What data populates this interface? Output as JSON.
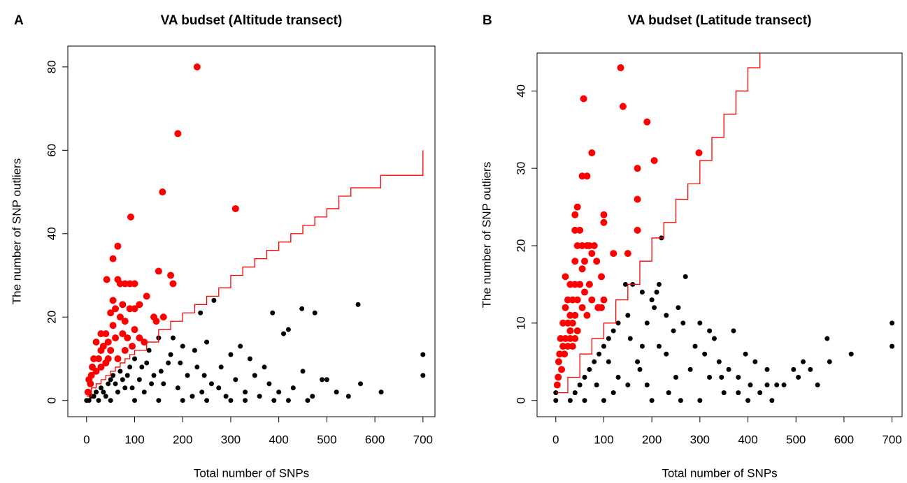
{
  "chart_data": [
    {
      "type": "scatter",
      "panel_label": "A",
      "title": "VA budset (Altitude transect)",
      "x_label": "Total number of SNPs",
      "y_label": "The number of SNP outliers",
      "xlim": [
        -39,
        725
      ],
      "ylim": [
        -3.9,
        85
      ],
      "xticks": [
        0,
        100,
        200,
        300,
        400,
        500,
        600,
        700
      ],
      "yticks": [
        0,
        20,
        40,
        60,
        80
      ],
      "series": [
        {
          "color": "#000000",
          "marker_size": 3.5,
          "x": [
            700,
            700,
            613,
            565,
            570,
            545,
            520,
            500,
            490,
            460,
            470,
            448,
            475,
            420,
            410,
            387,
            430,
            450,
            400,
            370,
            380,
            265,
            237,
            320,
            340,
            300,
            280,
            250,
            200,
            180,
            150,
            130,
            100,
            90,
            70,
            50,
            30,
            20,
            10,
            5,
            60,
            80,
            110,
            120,
            140,
            160,
            170,
            190,
            210,
            220,
            230,
            240,
            260,
            290,
            310,
            330,
            350,
            360,
            390,
            330,
            250,
            150,
            50,
            0,
            100,
            200,
            300,
            420,
            125,
            175,
            225,
            95,
            40,
            65,
            85,
            115,
            135,
            155,
            195,
            245,
            275,
            15,
            25,
            35,
            45,
            55,
            75
          ],
          "y": [
            11,
            6,
            2,
            23,
            4,
            1,
            2,
            5,
            5,
            0,
            1,
            22,
            21,
            17,
            16,
            21,
            3,
            7,
            2,
            8,
            4,
            24,
            21,
            13,
            10,
            11,
            8,
            14,
            13,
            15,
            15,
            12,
            10,
            8,
            7,
            5,
            3,
            2,
            1,
            0,
            4,
            3,
            5,
            2,
            6,
            4,
            9,
            3,
            6,
            1,
            8,
            2,
            4,
            1,
            5,
            2,
            6,
            1,
            0,
            0,
            0,
            0,
            0,
            0,
            0,
            0,
            0,
            0,
            9,
            11,
            12,
            3,
            1,
            2,
            6,
            8,
            4,
            7,
            9,
            6,
            3,
            1,
            0,
            2,
            4,
            6,
            5
          ]
        },
        {
          "color": "#ff0000",
          "marker_size": 5,
          "x": [
            230,
            190,
            158,
            92,
            310,
            55,
            65,
            150,
            175,
            180,
            42,
            65,
            70,
            80,
            90,
            100,
            110,
            125,
            100,
            90,
            140,
            145,
            160,
            60,
            50,
            55,
            70,
            30,
            40,
            20,
            35,
            50,
            60,
            75,
            85,
            95,
            110,
            15,
            25,
            30,
            45,
            10,
            5,
            20,
            40,
            65,
            80,
            120,
            12,
            8,
            3,
            55,
            45,
            30,
            100,
            80,
            75
          ],
          "y": [
            80,
            64,
            50,
            44,
            46,
            34,
            37,
            31,
            30,
            28,
            29,
            29,
            28,
            28,
            28,
            28,
            23,
            25,
            22,
            22,
            20,
            19,
            20,
            22,
            21,
            24,
            20,
            16,
            16,
            14,
            13,
            12,
            15,
            16,
            15,
            13,
            15,
            10,
            10,
            8,
            10,
            6,
            5,
            7,
            9,
            10,
            12,
            14,
            8,
            4,
            2,
            18,
            14,
            12,
            17,
            19,
            23
          ]
        },
        {
          "color": "#ff0000",
          "mode": "step",
          "x": [
            0,
            10,
            20,
            30,
            40,
            50,
            60,
            70,
            80,
            90,
            100,
            125,
            150,
            175,
            200,
            225,
            250,
            275,
            300,
            325,
            350,
            375,
            400,
            425,
            450,
            475,
            500,
            525,
            550,
            612,
            700,
            700
          ],
          "y": [
            1,
            3,
            4,
            5,
            6,
            7,
            8,
            9,
            10,
            11,
            12,
            14,
            17,
            19,
            21,
            23,
            25,
            27,
            30,
            32,
            34,
            36,
            38,
            40,
            42,
            44,
            46,
            49,
            51,
            54,
            54,
            60
          ]
        }
      ]
    },
    {
      "type": "scatter",
      "panel_label": "B",
      "title": "VA budset (Latitude transect)",
      "x_label": "Total number of SNPs",
      "y_label": "The number of SNP outliers",
      "xlim": [
        -39,
        721
      ],
      "ylim": [
        -2.1,
        44.9
      ],
      "xticks": [
        0,
        100,
        200,
        300,
        400,
        500,
        600,
        700
      ],
      "yticks": [
        0,
        10,
        20,
        30,
        40
      ],
      "series": [
        {
          "color": "#000000",
          "marker_size": 3.5,
          "x": [
            700,
            700,
            615,
            565,
            570,
            545,
            530,
            515,
            505,
            495,
            475,
            450,
            460,
            440,
            425,
            415,
            405,
            395,
            380,
            370,
            360,
            345,
            330,
            320,
            310,
            300,
            290,
            270,
            265,
            255,
            245,
            230,
            220,
            215,
            210,
            205,
            200,
            190,
            180,
            160,
            150,
            145,
            130,
            120,
            110,
            100,
            90,
            80,
            70,
            60,
            50,
            40,
            30,
            0,
            0,
            100,
            200,
            300,
            400,
            150,
            250,
            350,
            170,
            230,
            280,
            130,
            190,
            60,
            120,
            215,
            340,
            260,
            440,
            320,
            110,
            85,
            180,
            155,
            175,
            235,
            380
          ],
          "y": [
            10,
            7,
            6,
            8,
            5,
            2,
            4,
            5,
            3,
            4,
            2,
            0,
            2,
            4,
            1,
            5,
            2,
            6,
            1,
            9,
            4,
            3,
            8,
            9,
            6,
            10,
            7,
            16,
            10,
            12,
            9,
            11,
            21,
            15,
            14,
            12,
            13,
            10,
            14,
            15,
            11,
            15,
            10,
            9,
            8,
            7,
            6,
            5,
            4,
            3,
            2,
            1,
            0,
            0,
            1,
            0,
            0,
            0,
            0,
            2,
            3,
            1,
            5,
            6,
            4,
            3,
            2,
            0,
            1,
            7,
            5,
            0,
            2,
            3,
            5,
            2,
            7,
            8,
            4,
            1,
            3
          ]
        },
        {
          "color": "#ff0000",
          "marker_size": 5,
          "x": [
            135,
            58,
            140,
            190,
            75,
            298,
            205,
            170,
            55,
            65,
            170,
            45,
            100,
            40,
            100,
            50,
            40,
            170,
            80,
            45,
            55,
            65,
            70,
            75,
            120,
            150,
            85,
            60,
            40,
            95,
            55,
            20,
            30,
            40,
            50,
            70,
            60,
            25,
            35,
            45,
            100,
            55,
            20,
            30,
            40,
            15,
            25,
            35,
            10,
            20,
            30,
            40,
            15,
            25,
            35,
            8,
            18,
            6,
            12,
            5,
            3,
            95,
            88,
            75,
            65,
            45,
            30
          ],
          "y": [
            43,
            39,
            38,
            36,
            32,
            32,
            31,
            30,
            29,
            29,
            26,
            25,
            24,
            24,
            23,
            22,
            22,
            22,
            20,
            20,
            20,
            20,
            20,
            19,
            19,
            19,
            18,
            18,
            18,
            16,
            17,
            16,
            15,
            15,
            15,
            15,
            14,
            13,
            13,
            13,
            13,
            12,
            12,
            11,
            11,
            10,
            10,
            10,
            8,
            8,
            8,
            8,
            7,
            7,
            7,
            6,
            6,
            5,
            4,
            3,
            2,
            12,
            12,
            13,
            11,
            9,
            9
          ]
        },
        {
          "color": "#ff0000",
          "mode": "step",
          "x": [
            0,
            25,
            50,
            75,
            100,
            125,
            150,
            175,
            200,
            225,
            250,
            275,
            300,
            325,
            350,
            375,
            400,
            425
          ],
          "y": [
            1,
            3,
            6,
            8,
            10,
            13,
            15,
            18,
            21,
            23,
            26,
            28,
            31,
            34,
            37,
            40,
            43,
            46
          ]
        }
      ]
    }
  ]
}
